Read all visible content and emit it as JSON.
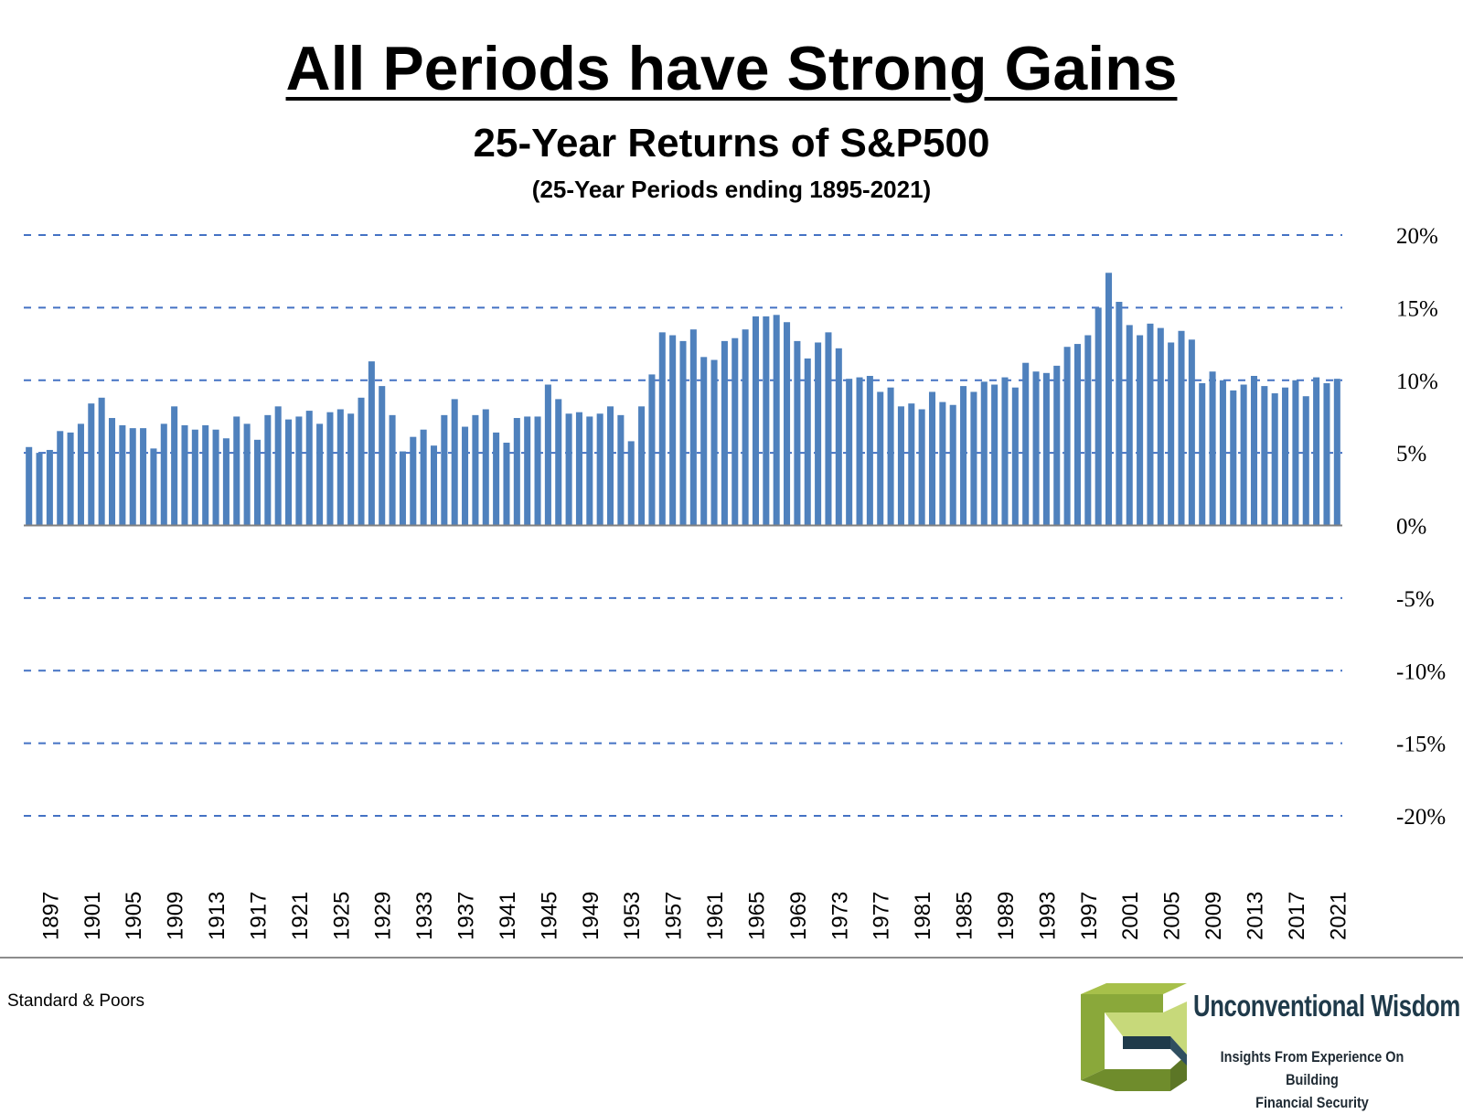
{
  "header": {
    "title": "All Periods have Strong Gains",
    "subtitle": "25-Year Returns of S&P500",
    "subsubtitle": "(25-Year Periods ending 1895-2021)"
  },
  "footer": {
    "source": "Standard & Poors",
    "logo_name": "Unconventional Wisdom",
    "logo_tagline_1": "Insights From Experience On Building",
    "logo_tagline_2": "Financial Security"
  },
  "colors": {
    "bar": "#4f81bd",
    "grid": "#4472c4",
    "logo_green": "#8aa83a",
    "logo_dark": "#1f3a4a"
  },
  "chart_data": {
    "type": "bar",
    "title": "25-Year Returns of S&P500",
    "xlabel": "",
    "ylabel": "",
    "ylim": [
      -20,
      20
    ],
    "yticks": [
      20,
      15,
      10,
      5,
      0,
      -5,
      -10,
      -15,
      -20
    ],
    "ytick_labels": [
      "20%",
      "15%",
      "10%",
      "5%",
      "0%",
      "-5%",
      "-10%",
      "-15%",
      "-20%"
    ],
    "grid": "dashed horizontal",
    "x_tick_labels": [
      "1897",
      "1901",
      "1905",
      "1909",
      "1913",
      "1917",
      "1921",
      "1925",
      "1929",
      "1933",
      "1937",
      "1941",
      "1945",
      "1949",
      "1953",
      "1957",
      "1961",
      "1965",
      "1969",
      "1973",
      "1977",
      "1981",
      "1985",
      "1989",
      "1993",
      "1997",
      "2001",
      "2005",
      "2009",
      "2013",
      "2017",
      "2021"
    ],
    "x_start_year": 1895,
    "values": [
      5.4,
      5.0,
      5.2,
      6.5,
      6.4,
      7.0,
      8.4,
      8.8,
      7.4,
      6.9,
      6.7,
      6.7,
      5.3,
      7.0,
      8.2,
      6.9,
      6.6,
      6.9,
      6.6,
      6.0,
      7.5,
      7.0,
      5.9,
      7.6,
      8.2,
      7.3,
      7.5,
      7.9,
      7.0,
      7.8,
      8.0,
      7.7,
      8.8,
      11.3,
      9.6,
      7.6,
      5.1,
      6.1,
      6.6,
      5.5,
      7.6,
      8.7,
      6.8,
      7.6,
      8.0,
      6.4,
      5.7,
      7.4,
      7.5,
      7.5,
      9.7,
      8.7,
      7.7,
      7.8,
      7.5,
      7.7,
      8.2,
      7.6,
      5.8,
      8.2,
      10.4,
      13.3,
      13.1,
      12.7,
      13.5,
      11.6,
      11.4,
      12.7,
      12.9,
      13.5,
      14.4,
      14.4,
      14.5,
      14.0,
      12.7,
      11.5,
      12.6,
      13.3,
      12.2,
      10.1,
      10.2,
      10.3,
      9.2,
      9.5,
      8.2,
      8.4,
      8.0,
      9.2,
      8.5,
      8.3,
      9.6,
      9.2,
      9.9,
      9.7,
      10.2,
      9.5,
      11.2,
      10.6,
      10.5,
      11.0,
      12.3,
      12.5,
      13.1,
      15.0,
      17.4,
      15.4,
      13.8,
      13.1,
      13.9,
      13.6,
      12.6,
      13.4,
      12.8,
      9.8,
      10.6,
      10.0,
      9.3,
      9.7,
      10.3,
      9.6,
      9.1,
      9.5,
      10.0,
      8.9,
      10.2,
      9.8,
      10.1
    ]
  }
}
